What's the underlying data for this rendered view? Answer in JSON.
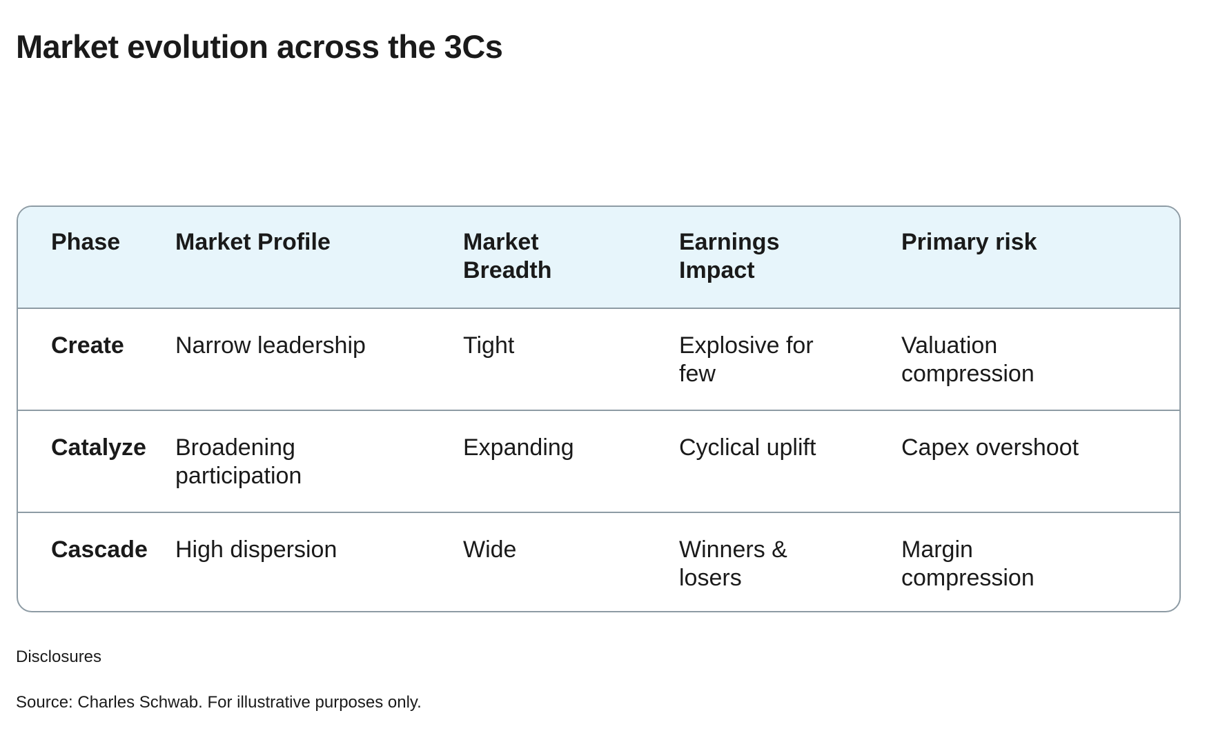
{
  "title": "Market evolution across the 3Cs",
  "table": {
    "headers": [
      "Phase",
      "Market Profile",
      "Market Breadth",
      "Earnings Impact",
      "Primary risk"
    ],
    "rows": [
      [
        "Create",
        "Narrow leadership",
        "Tight",
        "Explosive for few",
        "Valuation compression"
      ],
      [
        "Catalyze",
        "Broadening participation",
        "Expanding",
        "Cyclical uplift",
        "Capex overshoot"
      ],
      [
        "Cascade",
        "High dispersion",
        "Wide",
        "Winners & losers",
        "Margin compression"
      ]
    ]
  },
  "footer": {
    "disclosures": "Disclosures",
    "source": "Source: Charles Schwab. For illustrative purposes only."
  },
  "colors": {
    "header_background": "#e7f5fb",
    "border": "#8d9ba4",
    "text": "#1a1a1a"
  }
}
